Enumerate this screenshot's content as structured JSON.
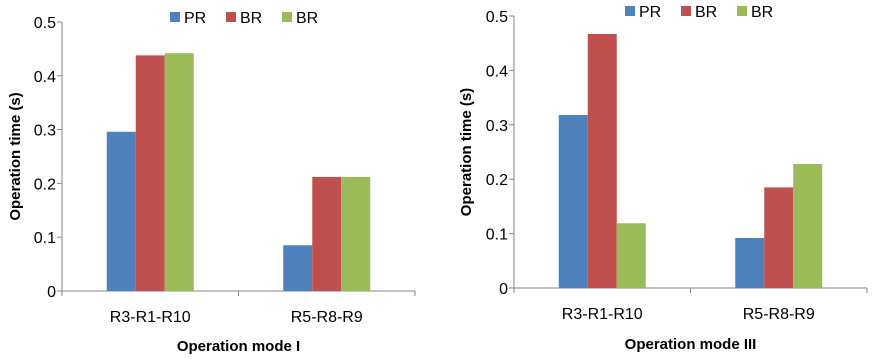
{
  "colors": {
    "series": [
      "#4F81BD",
      "#C0504D",
      "#9BBB59"
    ],
    "axis": "#868686",
    "background": "#ffffff"
  },
  "chart_data": [
    {
      "type": "bar",
      "title": "",
      "xlabel": "Operation mode I",
      "ylabel": "Operation time (s)",
      "ylim": [
        0,
        0.5
      ],
      "yticks": [
        "0",
        "0.1",
        "0.2",
        "0.3",
        "0.4",
        "0.5"
      ],
      "grid": false,
      "legend_position": "top",
      "categories": [
        "R3-R1-R10",
        "R5-R8-R9"
      ],
      "series": [
        {
          "name": "PR",
          "values": [
            0.296,
            0.085
          ]
        },
        {
          "name": "BR",
          "values": [
            0.438,
            0.212
          ]
        },
        {
          "name": "BR",
          "values": [
            0.442,
            0.212
          ]
        }
      ]
    },
    {
      "type": "bar",
      "title": "",
      "xlabel": "Operation mode III",
      "ylabel": "Operation time (s)",
      "ylim": [
        0,
        0.5
      ],
      "yticks": [
        "0",
        "0.1",
        "0.2",
        "0.3",
        "0.4",
        "0.5"
      ],
      "grid": false,
      "legend_position": "top",
      "categories": [
        "R3-R1-R10",
        "R5-R8-R9"
      ],
      "series": [
        {
          "name": "PR",
          "values": [
            0.318,
            0.092
          ]
        },
        {
          "name": "BR",
          "values": [
            0.467,
            0.185
          ]
        },
        {
          "name": "BR",
          "values": [
            0.119,
            0.228
          ]
        }
      ]
    }
  ]
}
